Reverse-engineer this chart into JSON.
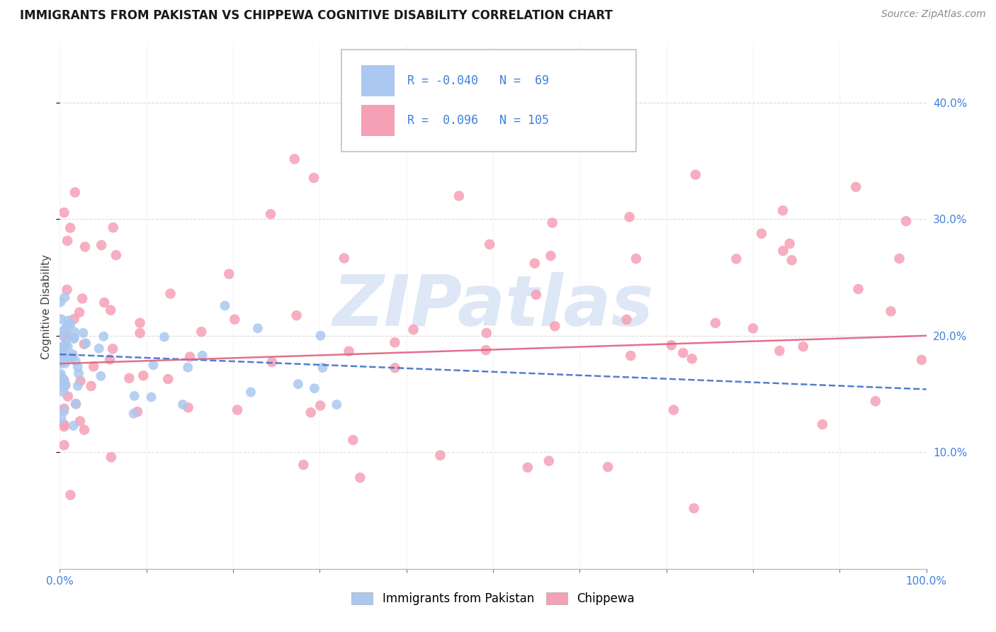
{
  "title": "IMMIGRANTS FROM PAKISTAN VS CHIPPEWA COGNITIVE DISABILITY CORRELATION CHART",
  "source": "Source: ZipAtlas.com",
  "ylabel": "Cognitive Disability",
  "xlim": [
    0.0,
    1.0
  ],
  "ylim": [
    0.0,
    0.45
  ],
  "y_ticks": [
    0.1,
    0.2,
    0.3,
    0.4
  ],
  "x_ticks_show": [
    0.0,
    1.0
  ],
  "legend_labels": [
    "Immigrants from Pakistan",
    "Chippewa"
  ],
  "legend_R": [
    -0.04,
    0.096
  ],
  "legend_N": [
    69,
    105
  ],
  "blue_color": "#aac8f0",
  "pink_color": "#f5a0b5",
  "blue_line_color": "#4070c8",
  "pink_line_color": "#e06080",
  "watermark": "ZIPatlas",
  "watermark_color": "#c8d8f0",
  "background_color": "#ffffff",
  "grid_color": "#d8d8d8",
  "right_tick_color": "#4080e0",
  "title_fontsize": 12,
  "source_fontsize": 10,
  "axis_label_fontsize": 11,
  "tick_fontsize": 11,
  "legend_fontsize": 12
}
